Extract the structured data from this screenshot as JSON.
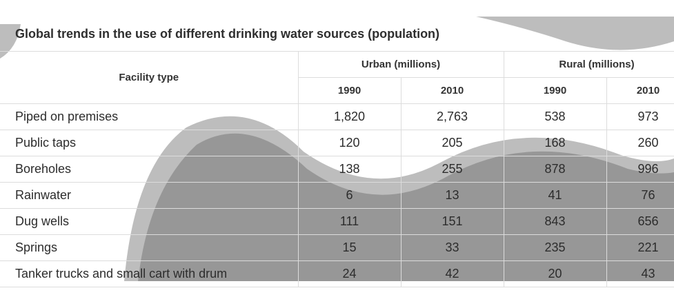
{
  "chart_data": {
    "type": "table",
    "title": "Global trends in the use of different drinking water sources (population)",
    "row_header": "Facility type",
    "column_groups": [
      {
        "label": "Urban (millions)",
        "years": [
          "1990",
          "2010"
        ]
      },
      {
        "label": "Rural (millions)",
        "years": [
          "1990",
          "2010"
        ]
      }
    ],
    "rows": [
      {
        "name": "Piped on premises",
        "values": [
          "1,820",
          "2,763",
          "538",
          "973"
        ]
      },
      {
        "name": "Public taps",
        "values": [
          "120",
          "205",
          "168",
          "260"
        ]
      },
      {
        "name": "Boreholes",
        "values": [
          "138",
          "255",
          "878",
          "996"
        ]
      },
      {
        "name": "Rainwater",
        "values": [
          "6",
          "13",
          "41",
          "76"
        ]
      },
      {
        "name": "Dug wells",
        "values": [
          "111",
          "151",
          "843",
          "656"
        ]
      },
      {
        "name": "Springs",
        "values": [
          "15",
          "33",
          "235",
          "221"
        ]
      },
      {
        "name": "Tanker trucks and small cart with drum",
        "values": [
          "24",
          "42",
          "20",
          "43"
        ]
      }
    ]
  }
}
